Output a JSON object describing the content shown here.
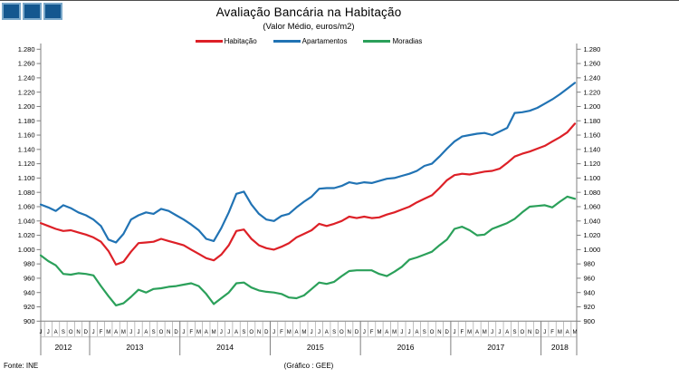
{
  "header": {
    "title": "Avaliação Bancária na Habitação",
    "subtitle": "(Valor Médio, euros/m2)"
  },
  "footer": {
    "source": "Fonte: INE",
    "credit": "(Gráfico : GEE)"
  },
  "colors": {
    "habitacao_red": "#dd2027",
    "apartamentos_blue": "#2173b4",
    "moradias_green": "#2ba05a",
    "logo_fill": "#14578f",
    "logo_border": "#79a7c9",
    "axis_gray": "#7f7f7f"
  },
  "chart_data": {
    "type": "line",
    "title": "Avaliação Bancária na Habitação",
    "subtitle": "(Valor Médio, euros/m2)",
    "ylabel": "euros/m2",
    "ylim": [
      900,
      1280
    ],
    "ytick_step": 20,
    "grid": false,
    "legend_position": "top-center",
    "x_unit": "month",
    "x_range": "Jun 2012 - May 2018",
    "month_letters": "JJASONDJFMAMJJASONDJFMAMJJASONDJFMAMJJASONDJFMAMJJASONDJFMAMJJASONDJFMAM",
    "years": [
      {
        "label": "2012",
        "months": 7
      },
      {
        "label": "2013",
        "months": 12
      },
      {
        "label": "2014",
        "months": 12
      },
      {
        "label": "2015",
        "months": 12
      },
      {
        "label": "2016",
        "months": 12
      },
      {
        "label": "2017",
        "months": 12
      },
      {
        "label": "2018",
        "months": 5
      }
    ],
    "series": [
      {
        "name": "Habitação",
        "color": "#dd2027",
        "values": [
          1037,
          1033,
          1029,
          1026,
          1027,
          1024,
          1021,
          1017,
          1011,
          998,
          979,
          983,
          997,
          1009,
          1010,
          1011,
          1015,
          1012,
          1009,
          1006,
          1000,
          994,
          988,
          985,
          993,
          1006,
          1026,
          1028,
          1015,
          1006,
          1002,
          1000,
          1004,
          1009,
          1017,
          1022,
          1027,
          1036,
          1033,
          1036,
          1040,
          1046,
          1044,
          1046,
          1044,
          1045,
          1049,
          1052,
          1056,
          1060,
          1066,
          1071,
          1076,
          1086,
          1097,
          1104,
          1106,
          1105,
          1107,
          1109,
          1110,
          1113,
          1121,
          1130,
          1134,
          1137,
          1141,
          1145,
          1151,
          1157,
          1164,
          1176
        ]
      },
      {
        "name": "Apartamentos",
        "color": "#2173b4",
        "values": [
          1063,
          1059,
          1054,
          1062,
          1058,
          1052,
          1048,
          1042,
          1033,
          1014,
          1010,
          1022,
          1042,
          1048,
          1052,
          1050,
          1057,
          1054,
          1048,
          1042,
          1035,
          1027,
          1015,
          1012,
          1030,
          1052,
          1078,
          1081,
          1063,
          1050,
          1042,
          1040,
          1047,
          1050,
          1059,
          1067,
          1074,
          1085,
          1086,
          1086,
          1089,
          1094,
          1092,
          1094,
          1093,
          1096,
          1099,
          1100,
          1103,
          1106,
          1110,
          1117,
          1120,
          1130,
          1141,
          1151,
          1158,
          1160,
          1162,
          1163,
          1160,
          1165,
          1170,
          1191,
          1192,
          1194,
          1198,
          1204,
          1210,
          1217,
          1225,
          1233
        ]
      },
      {
        "name": "Moradias",
        "color": "#2ba05a",
        "values": [
          992,
          984,
          978,
          966,
          965,
          967,
          966,
          964,
          949,
          935,
          922,
          925,
          934,
          944,
          940,
          945,
          946,
          948,
          949,
          951,
          953,
          949,
          938,
          924,
          932,
          940,
          953,
          954,
          947,
          943,
          941,
          940,
          938,
          933,
          932,
          936,
          945,
          954,
          952,
          955,
          963,
          970,
          971,
          971,
          971,
          966,
          963,
          969,
          976,
          986,
          989,
          993,
          997,
          1006,
          1014,
          1029,
          1032,
          1027,
          1020,
          1021,
          1029,
          1033,
          1037,
          1043,
          1052,
          1060,
          1061,
          1062,
          1059,
          1067,
          1074,
          1071
        ]
      }
    ]
  }
}
